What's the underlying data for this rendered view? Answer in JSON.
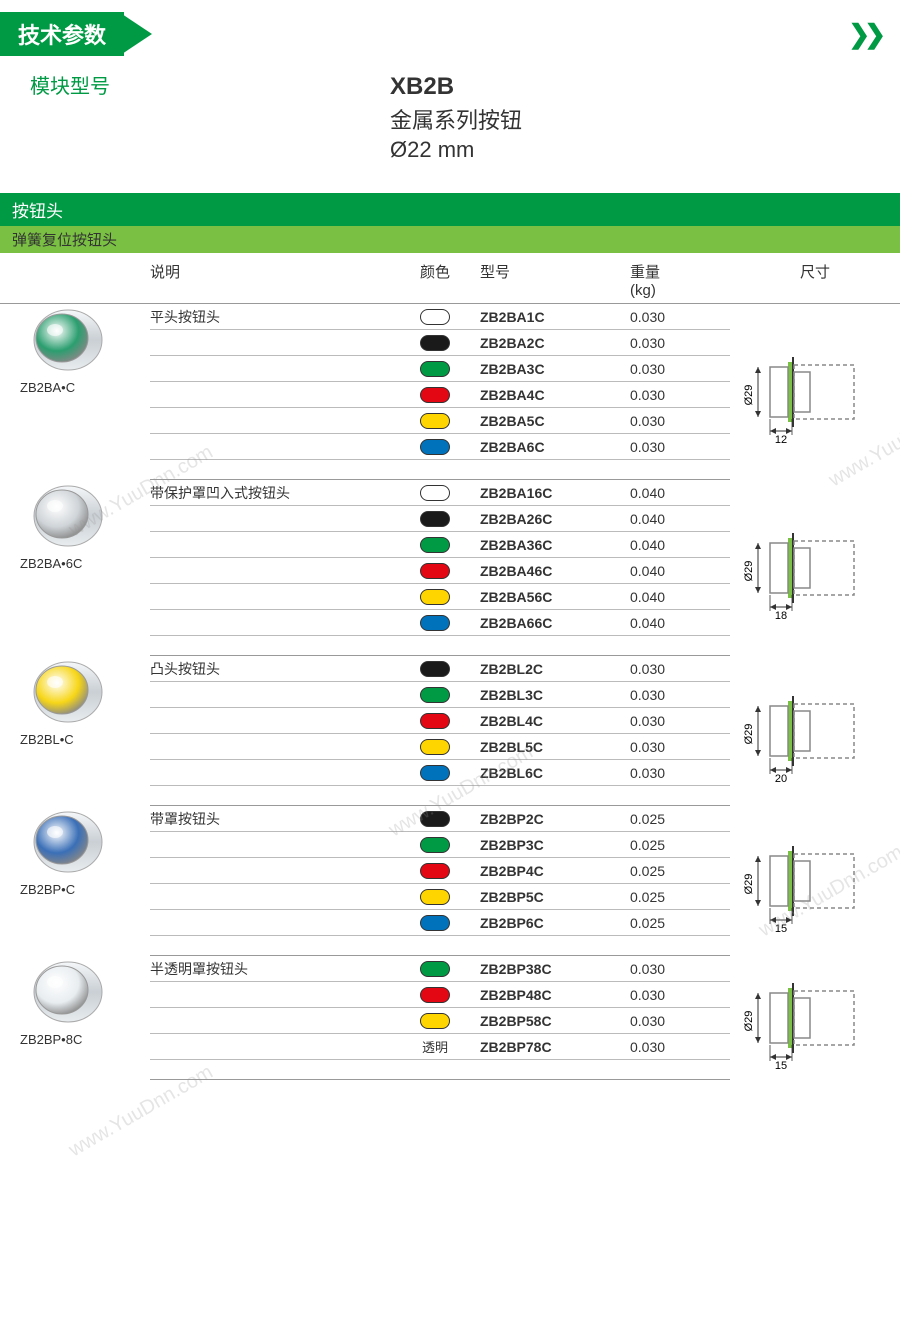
{
  "header": {
    "tech_spec": "技术参数",
    "module_type": "模块型号"
  },
  "product": {
    "code": "XB2B",
    "line1": "金属系列按钮",
    "line2": "Ø22 mm"
  },
  "section": {
    "band1": "按钮头",
    "band2": "弹簧复位按钮头"
  },
  "columns": {
    "desc": "说明",
    "color": "颜色",
    "model": "型号",
    "weight": "重量",
    "weight_unit": "(kg)",
    "dim": "尺寸"
  },
  "colors": {
    "white": "#ffffff",
    "black": "#1a1a1a",
    "green": "#009a44",
    "red": "#e30613",
    "yellow": "#ffd500",
    "blue": "#0072bc",
    "transparent_label": "透明",
    "brand_green": "#009a44",
    "light_green": "#7ac143",
    "border": "#bbbbbb",
    "diagram_stroke": "#888888",
    "diagram_accent": "#7ac143"
  },
  "groups": [
    {
      "img_label": "ZB2BA•C",
      "desc": "平头按钮头",
      "photo_color": "#2b9e6f",
      "dim_depth": "12",
      "dim_dia": "Ø29",
      "rows": [
        {
          "color": "#ffffff",
          "model": "ZB2BA1C",
          "weight": "0.030"
        },
        {
          "color": "#1a1a1a",
          "model": "ZB2BA2C",
          "weight": "0.030"
        },
        {
          "color": "#009a44",
          "model": "ZB2BA3C",
          "weight": "0.030"
        },
        {
          "color": "#e30613",
          "model": "ZB2BA4C",
          "weight": "0.030"
        },
        {
          "color": "#ffd500",
          "model": "ZB2BA5C",
          "weight": "0.030"
        },
        {
          "color": "#0072bc",
          "model": "ZB2BA6C",
          "weight": "0.030"
        }
      ]
    },
    {
      "img_label": "ZB2BA•6C",
      "desc": "带保护罩凹入式按钮头",
      "photo_color": "#cfd4d8",
      "dim_depth": "18",
      "dim_dia": "Ø29",
      "rows": [
        {
          "color": "#ffffff",
          "model": "ZB2BA16C",
          "weight": "0.040"
        },
        {
          "color": "#1a1a1a",
          "model": "ZB2BA26C",
          "weight": "0.040"
        },
        {
          "color": "#009a44",
          "model": "ZB2BA36C",
          "weight": "0.040"
        },
        {
          "color": "#e30613",
          "model": "ZB2BA46C",
          "weight": "0.040"
        },
        {
          "color": "#ffd500",
          "model": "ZB2BA56C",
          "weight": "0.040"
        },
        {
          "color": "#0072bc",
          "model": "ZB2BA66C",
          "weight": "0.040"
        }
      ]
    },
    {
      "img_label": "ZB2BL•C",
      "desc": "凸头按钮头",
      "photo_color": "#f7d617",
      "dim_depth": "20",
      "dim_dia": "Ø29",
      "rows": [
        {
          "color": "#1a1a1a",
          "model": "ZB2BL2C",
          "weight": "0.030"
        },
        {
          "color": "#009a44",
          "model": "ZB2BL3C",
          "weight": "0.030"
        },
        {
          "color": "#e30613",
          "model": "ZB2BL4C",
          "weight": "0.030"
        },
        {
          "color": "#ffd500",
          "model": "ZB2BL5C",
          "weight": "0.030"
        },
        {
          "color": "#0072bc",
          "model": "ZB2BL6C",
          "weight": "0.030"
        }
      ]
    },
    {
      "img_label": "ZB2BP•C",
      "desc": "带罩按钮头",
      "photo_color": "#3a6fb7",
      "dim_depth": "15",
      "dim_dia": "Ø29",
      "rows": [
        {
          "color": "#1a1a1a",
          "model": "ZB2BP2C",
          "weight": "0.025"
        },
        {
          "color": "#009a44",
          "model": "ZB2BP3C",
          "weight": "0.025"
        },
        {
          "color": "#e30613",
          "model": "ZB2BP4C",
          "weight": "0.025"
        },
        {
          "color": "#ffd500",
          "model": "ZB2BP5C",
          "weight": "0.025"
        },
        {
          "color": "#0072bc",
          "model": "ZB2BP6C",
          "weight": "0.025"
        }
      ]
    },
    {
      "img_label": "ZB2BP•8C",
      "desc": "半透明罩按钮头",
      "photo_color": "#e8edf0",
      "dim_depth": "15",
      "dim_dia": "Ø29",
      "rows": [
        {
          "color": "#009a44",
          "model": "ZB2BP38C",
          "weight": "0.030"
        },
        {
          "color": "#e30613",
          "model": "ZB2BP48C",
          "weight": "0.030"
        },
        {
          "color": "#ffd500",
          "model": "ZB2BP58C",
          "weight": "0.030"
        },
        {
          "color_text": "透明",
          "model": "ZB2BP78C",
          "weight": "0.030"
        }
      ]
    }
  ],
  "watermark": "www.YuuDnn.com"
}
